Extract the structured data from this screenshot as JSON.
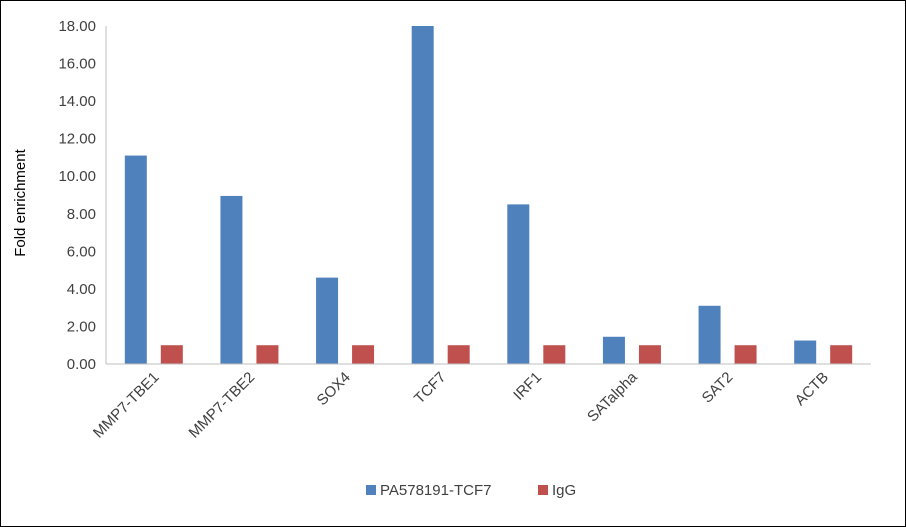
{
  "chart_data": {
    "type": "bar",
    "title": "",
    "xlabel": "",
    "ylabel": "Fold enrichment",
    "ylim": [
      0,
      18
    ],
    "yticks": [
      "0.00",
      "2.00",
      "4.00",
      "6.00",
      "8.00",
      "10.00",
      "12.00",
      "14.00",
      "16.00",
      "18.00"
    ],
    "categories": [
      "MMP7-TBE1",
      "MMP7-TBE2",
      "SOX4",
      "TCF7",
      "IRF1",
      "SATalpha",
      "SAT2",
      "ACTB"
    ],
    "series": [
      {
        "name": "PA578191-TCF7",
        "color": "#4f81bd",
        "values": [
          11.1,
          8.95,
          4.6,
          18.0,
          8.5,
          1.45,
          3.1,
          1.25
        ]
      },
      {
        "name": "IgG",
        "color": "#c0504d",
        "values": [
          1.0,
          1.0,
          1.0,
          1.0,
          1.0,
          1.0,
          1.0,
          1.0
        ]
      }
    ],
    "grid": false,
    "legend": "bottom",
    "axis_color": "#bfbfbf"
  }
}
